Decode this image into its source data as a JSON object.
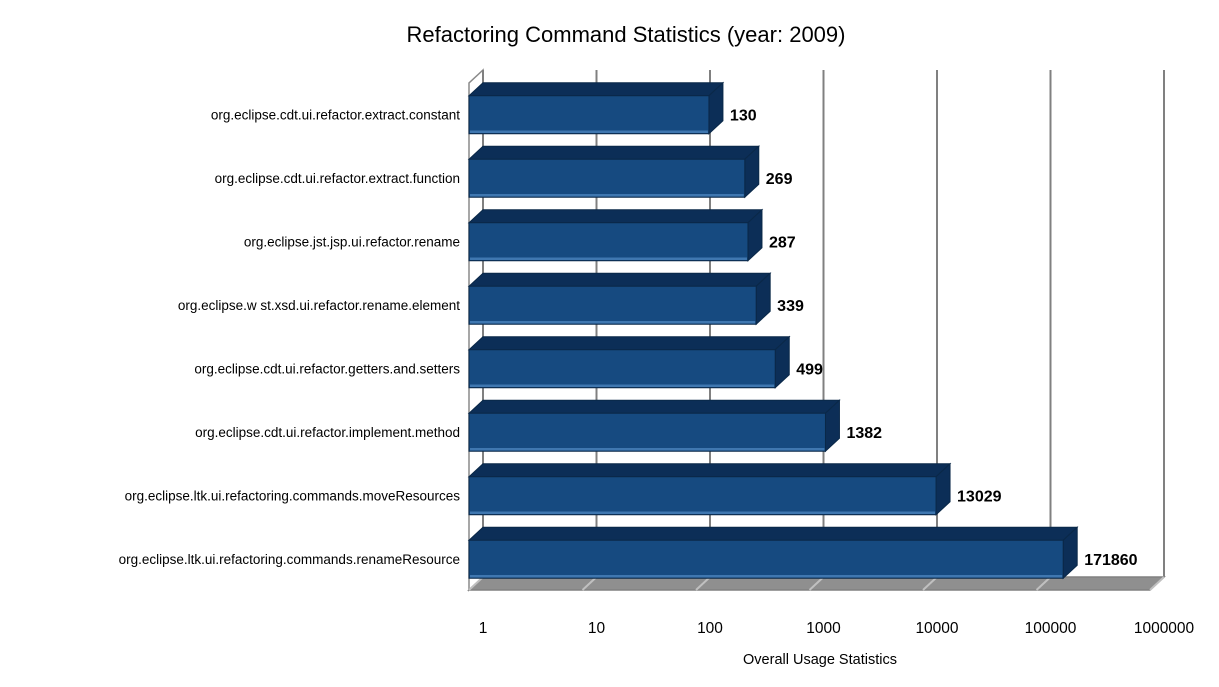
{
  "chart_data": {
    "type": "bar",
    "orientation": "horizontal",
    "style": "3d",
    "title": "Refactoring Command Statistics (year: 2009)",
    "xlabel": "Overall Usage Statistics",
    "x_scale": "log",
    "xlim": [
      1,
      1000000
    ],
    "x_ticks": [
      1,
      10,
      100,
      1000,
      10000,
      100000,
      1000000
    ],
    "grid": true,
    "legend": false,
    "categories": [
      "org.eclipse.cdt.ui.refactor.extract.constant",
      "org.eclipse.cdt.ui.refactor.extract.function",
      "org.eclipse.jst.jsp.ui.refactor.rename",
      "org.eclipse.w st.xsd.ui.refactor.rename.element",
      "org.eclipse.cdt.ui.refactor.getters.and.setters",
      "org.eclipse.cdt.ui.refactor.implement.method",
      "org.eclipse.ltk.ui.refactoring.commands.moveResources",
      "org.eclipse.ltk.ui.refactoring.commands.renameResource"
    ],
    "values": [
      130,
      269,
      287,
      339,
      499,
      1382,
      13029,
      171860
    ],
    "value_labels": [
      "130",
      "269",
      "287",
      "339",
      "499",
      "1382",
      "13029",
      "171860"
    ],
    "colors": {
      "bar_front": "#164a80",
      "bar_side": "#0c2e57",
      "bar_bottom_highlight": "#3f77b0",
      "bar_outline": "#0a2848",
      "gridline": "#808080",
      "floor": "#8f8f8f",
      "floor_stripe": "#c0c0c0",
      "wall_fill": "#ffffff",
      "wall_outline": "#8a8a8a",
      "text": "#000000",
      "background": "#ffffff"
    }
  }
}
